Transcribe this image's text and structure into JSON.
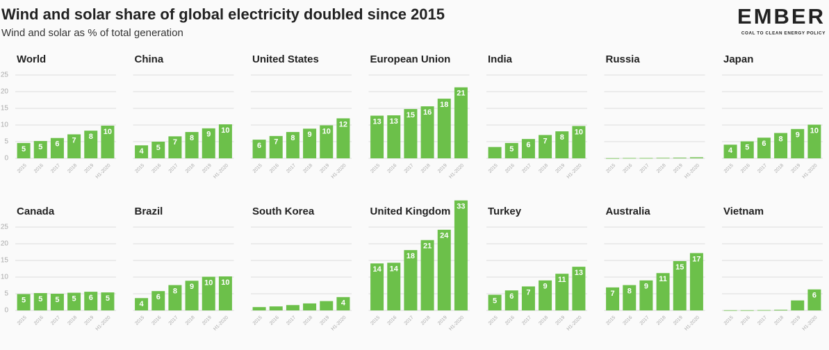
{
  "title": "Wind and solar share of global electricity doubled since 2015",
  "subtitle": "Wind and solar as % of total generation",
  "logo": {
    "name": "EMBER",
    "tagline": "COAL TO CLEAN ENERGY POLICY"
  },
  "chart_data": [
    {
      "type": "bar",
      "title": "World",
      "categories": [
        "2015",
        "2016",
        "2017",
        "2018",
        "2019",
        "H1-2020"
      ],
      "values": [
        4.6,
        5.2,
        6.1,
        7.2,
        8.3,
        9.8
      ],
      "value_labels": [
        "5",
        "5",
        "6",
        "7",
        "8",
        "10"
      ],
      "color": "#6cc04a",
      "ylim": [
        0,
        25
      ],
      "yticks": [
        0,
        5,
        10,
        15,
        20,
        25
      ],
      "grid": true
    },
    {
      "type": "bar",
      "title": "China",
      "categories": [
        "2015",
        "2016",
        "2017",
        "2018",
        "2019",
        "H1-2020"
      ],
      "values": [
        3.9,
        5.0,
        6.6,
        7.9,
        9.0,
        10.2
      ],
      "value_labels": [
        "4",
        "5",
        "7",
        "8",
        "9",
        "10"
      ],
      "color": "#6cc04a",
      "ylim": [
        0,
        25
      ],
      "yticks": [
        0,
        5,
        10,
        15,
        20,
        25
      ],
      "grid": true
    },
    {
      "type": "bar",
      "title": "United States",
      "categories": [
        "2015",
        "2016",
        "2017",
        "2018",
        "2019",
        "H1-2020"
      ],
      "values": [
        5.6,
        6.7,
        7.9,
        8.9,
        9.9,
        12.0
      ],
      "value_labels": [
        "6",
        "7",
        "8",
        "9",
        "10",
        "12"
      ],
      "color": "#6cc04a",
      "ylim": [
        0,
        25
      ],
      "yticks": [
        0,
        5,
        10,
        15,
        20,
        25
      ],
      "grid": true
    },
    {
      "type": "bar",
      "title": "European Union",
      "categories": [
        "2015",
        "2016",
        "2017",
        "2018",
        "2019",
        "H1-2020"
      ],
      "values": [
        12.8,
        12.9,
        14.8,
        15.6,
        17.9,
        21.3
      ],
      "value_labels": [
        "13",
        "13",
        "15",
        "16",
        "18",
        "21"
      ],
      "color": "#6cc04a",
      "ylim": [
        0,
        25
      ],
      "yticks": [
        0,
        5,
        10,
        15,
        20,
        25
      ],
      "grid": true
    },
    {
      "type": "bar",
      "title": "India",
      "categories": [
        "2015",
        "2016",
        "2017",
        "2018",
        "2019",
        "H1-2020"
      ],
      "values": [
        3.4,
        4.6,
        5.8,
        7.0,
        8.1,
        9.7
      ],
      "value_labels": [
        null,
        "5",
        "6",
        "7",
        "8",
        "10"
      ],
      "color": "#6cc04a",
      "ylim": [
        0,
        25
      ],
      "yticks": [
        0,
        5,
        10,
        15,
        20,
        25
      ],
      "grid": true
    },
    {
      "type": "bar",
      "title": "Russia",
      "categories": [
        "2015",
        "2016",
        "2017",
        "2018",
        "2019",
        "H1-2020"
      ],
      "values": [
        0.05,
        0.1,
        0.1,
        0.15,
        0.2,
        0.3
      ],
      "value_labels": [
        null,
        null,
        null,
        null,
        null,
        null
      ],
      "color": "#6cc04a",
      "ylim": [
        0,
        25
      ],
      "yticks": [
        0,
        5,
        10,
        15,
        20,
        25
      ],
      "grid": true
    },
    {
      "type": "bar",
      "title": "Japan",
      "categories": [
        "2015",
        "2016",
        "2017",
        "2018",
        "2019",
        "H1-2020"
      ],
      "values": [
        4.1,
        5.1,
        6.2,
        7.6,
        8.8,
        10.1
      ],
      "value_labels": [
        "4",
        "5",
        "6",
        "8",
        "9",
        "10"
      ],
      "color": "#6cc04a",
      "ylim": [
        0,
        25
      ],
      "yticks": [
        0,
        5,
        10,
        15,
        20,
        25
      ],
      "grid": true
    },
    {
      "type": "bar",
      "title": "Canada",
      "categories": [
        "2015",
        "2016",
        "2017",
        "2018",
        "2019",
        "H1-2020"
      ],
      "values": [
        4.9,
        5.2,
        5.0,
        5.3,
        5.6,
        5.4
      ],
      "value_labels": [
        "5",
        "5",
        "5",
        "5",
        "6",
        "5"
      ],
      "color": "#6cc04a",
      "ylim": [
        0,
        25
      ],
      "yticks": [
        0,
        5,
        10,
        15,
        20,
        25
      ],
      "grid": true
    },
    {
      "type": "bar",
      "title": "Brazil",
      "categories": [
        "2015",
        "2016",
        "2017",
        "2018",
        "2019",
        "H1-2020"
      ],
      "values": [
        3.7,
        5.8,
        7.6,
        8.9,
        10.1,
        10.2
      ],
      "value_labels": [
        "4",
        "6",
        "8",
        "9",
        "10",
        "10"
      ],
      "color": "#6cc04a",
      "ylim": [
        0,
        25
      ],
      "yticks": [
        0,
        5,
        10,
        15,
        20,
        25
      ],
      "grid": true
    },
    {
      "type": "bar",
      "title": "South Korea",
      "categories": [
        "2015",
        "2016",
        "2017",
        "2018",
        "2019",
        "H1-2020"
      ],
      "values": [
        1.0,
        1.2,
        1.6,
        2.1,
        2.8,
        4.0
      ],
      "value_labels": [
        null,
        null,
        null,
        null,
        null,
        "4"
      ],
      "color": "#6cc04a",
      "ylim": [
        0,
        25
      ],
      "yticks": [
        0,
        5,
        10,
        15,
        20,
        25
      ],
      "grid": true
    },
    {
      "type": "bar",
      "title": "United Kingdom",
      "categories": [
        "2015",
        "2016",
        "2017",
        "2018",
        "2019",
        "H1-2020"
      ],
      "values": [
        14.1,
        14.3,
        18.1,
        21.1,
        24.2,
        33.0
      ],
      "value_labels": [
        "14",
        "14",
        "18",
        "21",
        "24",
        "33"
      ],
      "color": "#6cc04a",
      "ylim": [
        0,
        25
      ],
      "yticks": [
        0,
        5,
        10,
        15,
        20,
        25
      ],
      "grid": true
    },
    {
      "type": "bar",
      "title": "Turkey",
      "categories": [
        "2015",
        "2016",
        "2017",
        "2018",
        "2019",
        "H1-2020"
      ],
      "values": [
        4.7,
        6.0,
        7.2,
        9.0,
        11.0,
        13.1
      ],
      "value_labels": [
        "5",
        "6",
        "7",
        "9",
        "11",
        "13"
      ],
      "color": "#6cc04a",
      "ylim": [
        0,
        25
      ],
      "yticks": [
        0,
        5,
        10,
        15,
        20,
        25
      ],
      "grid": true
    },
    {
      "type": "bar",
      "title": "Australia",
      "categories": [
        "2015",
        "2016",
        "2017",
        "2018",
        "2019",
        "H1-2020"
      ],
      "values": [
        6.9,
        7.6,
        9.0,
        11.2,
        14.8,
        17.2
      ],
      "value_labels": [
        "7",
        "8",
        "9",
        "11",
        "15",
        "17"
      ],
      "color": "#6cc04a",
      "ylim": [
        0,
        25
      ],
      "yticks": [
        0,
        5,
        10,
        15,
        20,
        25
      ],
      "grid": true
    },
    {
      "type": "bar",
      "title": "Vietnam",
      "categories": [
        "2015",
        "2016",
        "2017",
        "2018",
        "2019",
        "H1-2020"
      ],
      "values": [
        0.05,
        0.05,
        0.1,
        0.2,
        3.0,
        6.3
      ],
      "value_labels": [
        null,
        null,
        null,
        null,
        null,
        "6"
      ],
      "color": "#6cc04a",
      "ylim": [
        0,
        25
      ],
      "yticks": [
        0,
        5,
        10,
        15,
        20,
        25
      ],
      "grid": true
    }
  ]
}
